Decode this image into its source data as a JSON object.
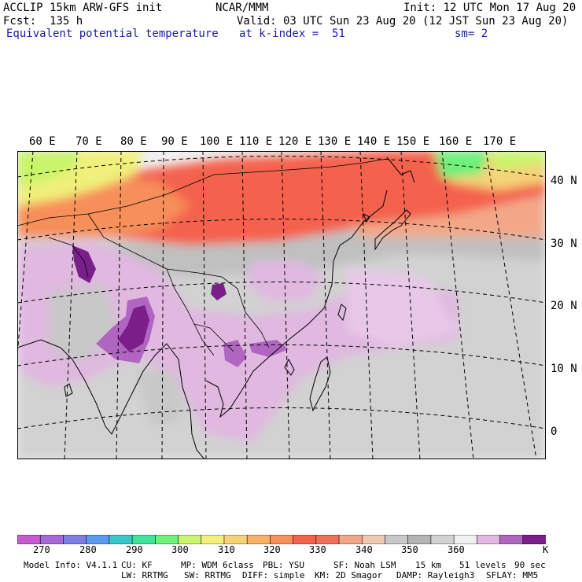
{
  "header": {
    "model": "ACCLIP 15km ARW-GFS init",
    "org": "NCAR/MMM",
    "init": "Init: 12 UTC Mon 17 Aug 20",
    "fcst": "Fcst:  135 h",
    "valid": "Valid: 03 UTC Sun 23 Aug 20 (12 JST Sun 23 Aug 20)",
    "field": "Equivalent potential temperature",
    "level": "at k-index =  51",
    "smooth": "sm= 2"
  },
  "map": {
    "lon_labels": [
      "60 E",
      "70 E",
      "80 E",
      "90 E",
      "100 E",
      "110 E",
      "120 E",
      "130 E",
      "140 E",
      "150 E",
      "160 E",
      "170 E"
    ],
    "lat_labels": [
      "40 N",
      "30 N",
      "20 N",
      "10 N",
      "0"
    ]
  },
  "colorbar": {
    "unit": "K",
    "labels": [
      "270",
      "280",
      "290",
      "300",
      "310",
      "320",
      "330",
      "340",
      "350",
      "360"
    ],
    "colors": [
      "#c85ad2",
      "#a66ad8",
      "#7d7de6",
      "#5a9af0",
      "#38c8c8",
      "#3fe39a",
      "#6ef07a",
      "#c8f56a",
      "#f0f07a",
      "#f5d278",
      "#f7b066",
      "#f78f5a",
      "#f4624e",
      "#f06e5a",
      "#f2a888",
      "#efc8b0",
      "#c8c8c8",
      "#b4b4b4",
      "#d2d2d2",
      "#f0f0f0",
      "#e0b8e0",
      "#b066c0",
      "#7a1e8a"
    ]
  },
  "footer": {
    "line1": [
      "Model Info: V4.1.1",
      "CU: KF",
      "MP: WDM 6class",
      "PBL: YSU",
      "SF: Noah LSM",
      "15 km",
      "51 levels",
      "90 sec"
    ],
    "line2": [
      "LW: RRTMG",
      "SW: RRTMG",
      "DIFF: simple",
      "KM: 2D Smagor",
      "DAMP: Rayleigh3",
      "SFLAY: MM5"
    ]
  }
}
